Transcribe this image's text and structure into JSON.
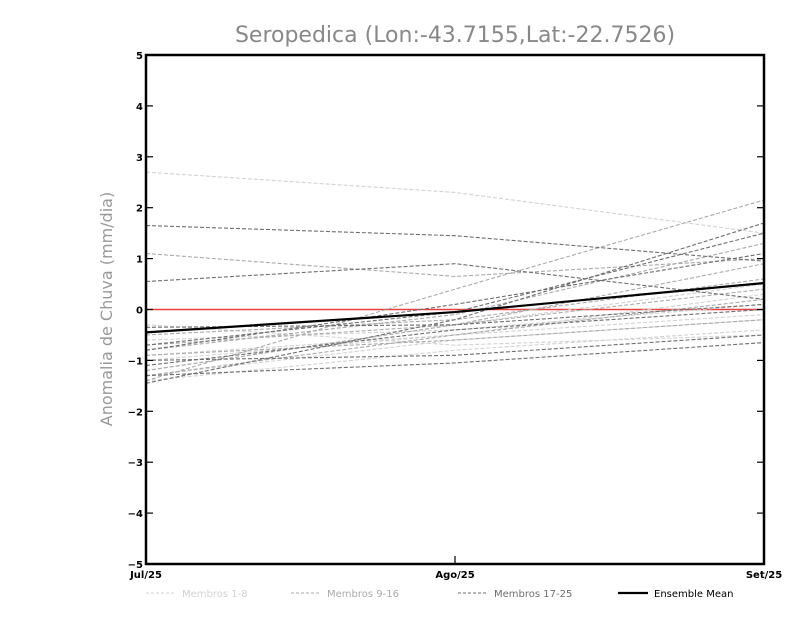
{
  "chart_data": {
    "type": "line",
    "title": "Seropedica (Lon:-43.7155,Lat:-22.7526)",
    "ylabel": "Anomalia de Chuva (mm/dia)",
    "xlabel": "",
    "categories": [
      "Jul/25",
      "Ago/25",
      "Set/25"
    ],
    "ylim": [
      -5,
      5
    ],
    "yticks": [
      -5,
      -4,
      -3,
      -2,
      -1,
      0,
      1,
      2,
      3,
      4,
      5
    ],
    "ytick_labels": [
      "−5",
      "−4",
      "−3",
      "−2",
      "−1",
      "0",
      "1",
      "2",
      "3",
      "4",
      "5"
    ],
    "zero_line_color": "#e84040",
    "groups": [
      {
        "label": "Membros 1-8",
        "color": "#d2d2d2",
        "dash": true,
        "series": [
          [
            2.7,
            2.3,
            1.5
          ],
          [
            -1.4,
            -0.8,
            -0.4
          ],
          [
            -1.3,
            -0.6,
            -0.2
          ],
          [
            -0.6,
            -0.4,
            0.1
          ],
          [
            -1.0,
            -0.5,
            0.3
          ],
          [
            -0.3,
            -0.7,
            -0.5
          ],
          [
            -1.2,
            -0.3,
            0.5
          ],
          [
            -0.9,
            -0.5,
            -0.1
          ]
        ]
      },
      {
        "label": "Membros 9-16",
        "color": "#aaaaaa",
        "dash": true,
        "series": [
          [
            -1.4,
            0.4,
            2.15
          ],
          [
            1.1,
            0.65,
            1.0
          ],
          [
            -0.8,
            -0.1,
            1.3
          ],
          [
            -1.2,
            -0.3,
            0.9
          ],
          [
            -0.5,
            -0.2,
            0.6
          ],
          [
            -0.9,
            -0.6,
            -0.2
          ],
          [
            -1.3,
            -0.5,
            0.2
          ],
          [
            -0.7,
            -0.3,
            0.4
          ]
        ]
      },
      {
        "label": "Membros 17-25",
        "color": "#6e6e6e",
        "dash": true,
        "series": [
          [
            1.65,
            1.45,
            0.95
          ],
          [
            0.55,
            0.9,
            0.2
          ],
          [
            -1.45,
            -0.2,
            1.7
          ],
          [
            -0.7,
            -0.05,
            1.5
          ],
          [
            -1.3,
            -1.05,
            -0.65
          ],
          [
            -0.35,
            -0.3,
            0.1
          ],
          [
            -1.0,
            -0.9,
            -0.5
          ],
          [
            -0.8,
            0.1,
            1.1
          ],
          [
            -1.1,
            -0.4,
            0.0
          ]
        ]
      }
    ],
    "ensemble_mean": {
      "label": "Ensemble Mean",
      "color": "#000000",
      "values": [
        -0.45,
        -0.05,
        0.52
      ]
    },
    "legend_position": "bottom",
    "grid": false
  }
}
